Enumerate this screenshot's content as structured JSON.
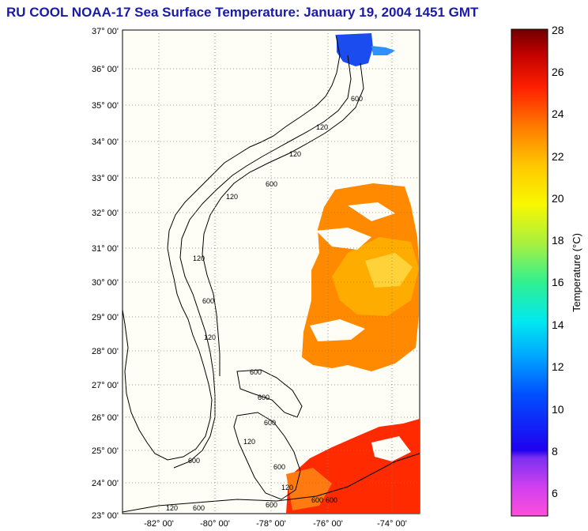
{
  "title": "RU COOL  NOAA-17  Sea Surface Temperature:  January 19, 2004 1451 GMT",
  "colors": {
    "title": "#1a1aa8",
    "land_bg": "#fffef6",
    "coast": "#000000"
  },
  "map": {
    "lat_range": [
      23,
      37
    ],
    "lon_range": [
      -83.3,
      -72.7
    ],
    "lat_labels": [
      "37° 00'",
      "36° 00'",
      "35° 00'",
      "34° 00'",
      "33° 00'",
      "32° 00'",
      "31° 00'",
      "30° 00'",
      "29° 00'",
      "28° 00'",
      "27° 00'",
      "26° 00'",
      "25° 00'",
      "24° 00'",
      "23° 00'"
    ],
    "lon_labels": [
      "-82° 00'",
      "-80° 00'",
      "-78° 00'",
      "-76° 00'",
      "-74° 00'"
    ],
    "isobath_labels": [
      "600",
      "120",
      "120",
      "600",
      "120",
      "600",
      "120",
      "600",
      "120",
      "600",
      "600",
      "600",
      "600",
      "120",
      "600",
      "120",
      "600",
      "600",
      "120",
      "600"
    ]
  },
  "colorbar": {
    "label": "Temperature (°C)",
    "ticks": [
      "28",
      "26",
      "24",
      "22",
      "20",
      "18",
      "16",
      "14",
      "12",
      "10",
      "8",
      "6"
    ],
    "range": [
      5,
      28
    ]
  }
}
